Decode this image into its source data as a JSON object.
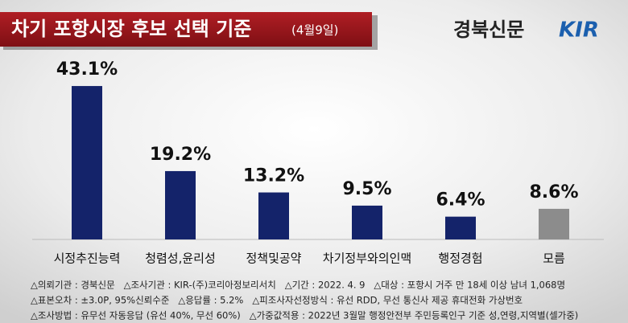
{
  "chart_data": {
    "type": "bar",
    "title": "차기 포항시장 후보 선택 기준",
    "subtitle": "(4월9일)",
    "brand": "경북신문",
    "logo": "KIR",
    "categories": [
      "시정추진능력",
      "청렴성,윤리성",
      "정책및공약",
      "차기정부와의인맥",
      "행정경험",
      "모름"
    ],
    "values": [
      43.1,
      19.2,
      13.2,
      9.5,
      6.4,
      8.6
    ],
    "value_labels": [
      "43.1%",
      "19.2%",
      "13.2%",
      "9.5%",
      "6.4%",
      "8.6%"
    ],
    "colors": [
      "#14236a",
      "#14236a",
      "#14236a",
      "#14236a",
      "#14236a",
      "#8c8c8c"
    ],
    "notes": [
      "△의뢰기관 : 경북신문   △조사기관 : KIR-(주)코리아정보리서치   △기간 : 2022. 4. 9   △대상 : 포항시 거주 만 18세 이상 남녀 1,068명",
      "△표본오차 : ±3.0P, 95%신뢰수준   △응답률 : 5.2%   △피조사자선정방식 : 유선 RDD, 무선 통신사 제공 휴대전화 가상번호",
      "△조사방법 : 유무선 자동응답 (유선 40%, 무선 60%)   △가중값적용 : 2022년 3월말 행정안전부 주민등록인구 기준 성,연령,지역별(셀가중)"
    ]
  }
}
